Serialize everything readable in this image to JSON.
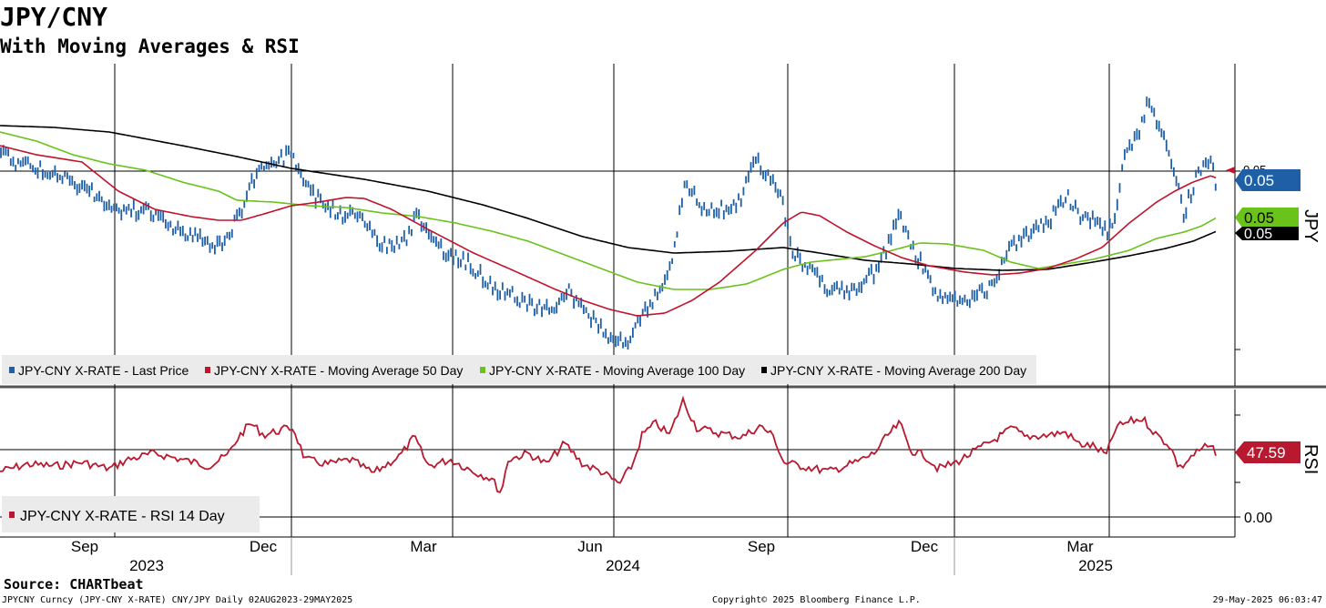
{
  "header": {
    "title": "JPY/CNY",
    "subtitle": "With Moving Averages & RSI"
  },
  "footer": {
    "source": "Source: CHARTbeat",
    "left": "JPYCNY Curncy (JPY-CNY X-RATE) CNY/JPY  Daily 02AUG2023-29MAY2025",
    "copyright": "Copyright© 2025 Bloomberg Finance L.P.",
    "timestamp": "29-May-2025 06:03:47"
  },
  "chart_data": [
    {
      "type": "line",
      "panel": "price",
      "axis_title": "JPY",
      "grid": true,
      "y_tick_labels": [
        "0.05"
      ],
      "series": [
        {
          "name": "JPY-CNY X-RATE - Last Price",
          "color": "#1f5fa6",
          "style": "bars"
        },
        {
          "name": "JPY-CNY X-RATE - Moving Average 50 Day",
          "color": "#c0132c"
        },
        {
          "name": "JPY-CNY X-RATE - Moving Average 100 Day",
          "color": "#6ac31a"
        },
        {
          "name": "JPY-CNY X-RATE - Moving Average 200 Day",
          "color": "#000000"
        }
      ],
      "last_value_tags": [
        {
          "series": "JPY-CNY X-RATE - Last Price",
          "label": "0.05",
          "color": "#1f5fa6"
        },
        {
          "series": "JPY-CNY X-RATE - Moving Average 100 Day",
          "label": "0.05",
          "color": "#6ac31a"
        },
        {
          "series": "JPY-CNY X-RATE - Moving Average 200 Day",
          "label": "0.05",
          "color": "#000000"
        }
      ],
      "x_month_labels": [
        "Sep",
        "Dec",
        "Mar",
        "Jun",
        "Sep",
        "Dec",
        "Mar"
      ],
      "x_year_labels": [
        "2023",
        "2024",
        "2025"
      ],
      "legend_position": "bottom-left"
    },
    {
      "type": "line",
      "panel": "rsi",
      "axis_title": "RSI",
      "y_tick_labels": [
        "0.00"
      ],
      "series": [
        {
          "name": "JPY-CNY X-RATE - RSI 14 Day",
          "color": "#b8192f",
          "last": 47.59
        }
      ],
      "last_value_tags": [
        {
          "series": "JPY-CNY X-RATE - RSI 14 Day",
          "label": "47.59",
          "color": "#b8192f"
        }
      ],
      "legend_position": "bottom-left"
    }
  ]
}
